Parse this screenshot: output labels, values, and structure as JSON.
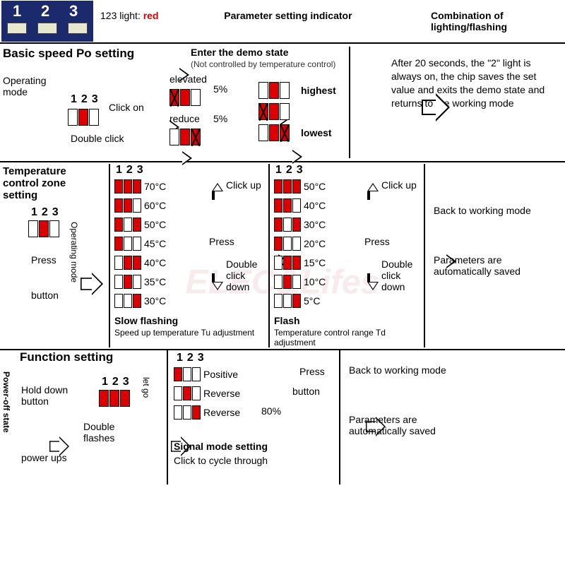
{
  "watermark": "ELEC&Lifes",
  "header": {
    "light_label": "123 light:",
    "light_color": "red",
    "col2": "Parameter setting indicator",
    "col3": "Combination of lighting/flashing"
  },
  "sec1": {
    "title": "Basic speed Po setting",
    "demo_title": "Enter the demo state",
    "demo_sub": "(Not controlled by temperature control)",
    "op_mode": "Operating mode",
    "num": "123",
    "click_on": "Click on",
    "double_click": "Double click",
    "elevated": "elevated",
    "reduce": "reduce",
    "pct": "5%",
    "highest": "highest",
    "lowest": "lowest",
    "result": "After 20 seconds, the \"2\" light is always on, the chip saves the set value and exits the demo state and returns to the working mode"
  },
  "sec2": {
    "title": "Temperature control zone setting",
    "num": "123",
    "op_mode_v": "Operating mode",
    "press": "Press",
    "button": "button",
    "click_up": "Click up",
    "press_arrow": "Press",
    "dbl_down": "Double click down",
    "slow_title": "Slow flashing",
    "slow_sub": "Speed up temperature Tu adjustment",
    "flash_title": "Flash",
    "flash_sub": "Temperature control range Td adjustment",
    "temps_left": [
      {
        "leds": [
          1,
          1,
          1
        ],
        "t": "70°C"
      },
      {
        "leds": [
          1,
          1,
          0
        ],
        "t": "60°C"
      },
      {
        "leds": [
          1,
          0,
          1
        ],
        "t": "50°C"
      },
      {
        "leds": [
          1,
          0,
          0
        ],
        "t": "45°C"
      },
      {
        "leds": [
          0,
          1,
          1
        ],
        "t": "40°C"
      },
      {
        "leds": [
          0,
          1,
          0
        ],
        "t": "35°C"
      },
      {
        "leds": [
          0,
          0,
          1
        ],
        "t": "30°C"
      }
    ],
    "temps_right": [
      {
        "leds": [
          1,
          1,
          1
        ],
        "t": "50°C"
      },
      {
        "leds": [
          1,
          1,
          0
        ],
        "t": "40°C"
      },
      {
        "leds": [
          1,
          0,
          1
        ],
        "t": "30°C"
      },
      {
        "leds": [
          1,
          0,
          0
        ],
        "t": "20°C"
      },
      {
        "leds": [
          0,
          1,
          1
        ],
        "t": "15°C"
      },
      {
        "leds": [
          0,
          1,
          0
        ],
        "t": "10°C"
      },
      {
        "leds": [
          0,
          0,
          1
        ],
        "t": "5°C"
      }
    ],
    "back": "Back to working mode",
    "saved": "Parameters are automatically saved"
  },
  "sec3": {
    "title": "Function setting",
    "power_off_v": "Power-off state",
    "num": "123",
    "hold": "Hold down button",
    "power_ups": "power ups",
    "dbl_flash": "Double flashes",
    "let_go_v": "let go",
    "modes": [
      {
        "leds": [
          1,
          0,
          0
        ],
        "t": "Positive"
      },
      {
        "leds": [
          0,
          1,
          0
        ],
        "t": "Reverse"
      },
      {
        "leds": [
          0,
          0,
          1
        ],
        "t": "Reverse"
      }
    ],
    "pct80": "80%",
    "signal_title": "Signal mode setting",
    "signal_sub": "Click to cycle through",
    "press": "Press",
    "button": "button",
    "back": "Back to working mode",
    "saved": "Parameters are automatically saved"
  },
  "colors": {
    "red": "#d00",
    "border": "#000",
    "chip_bg": "#1a2a6c"
  }
}
